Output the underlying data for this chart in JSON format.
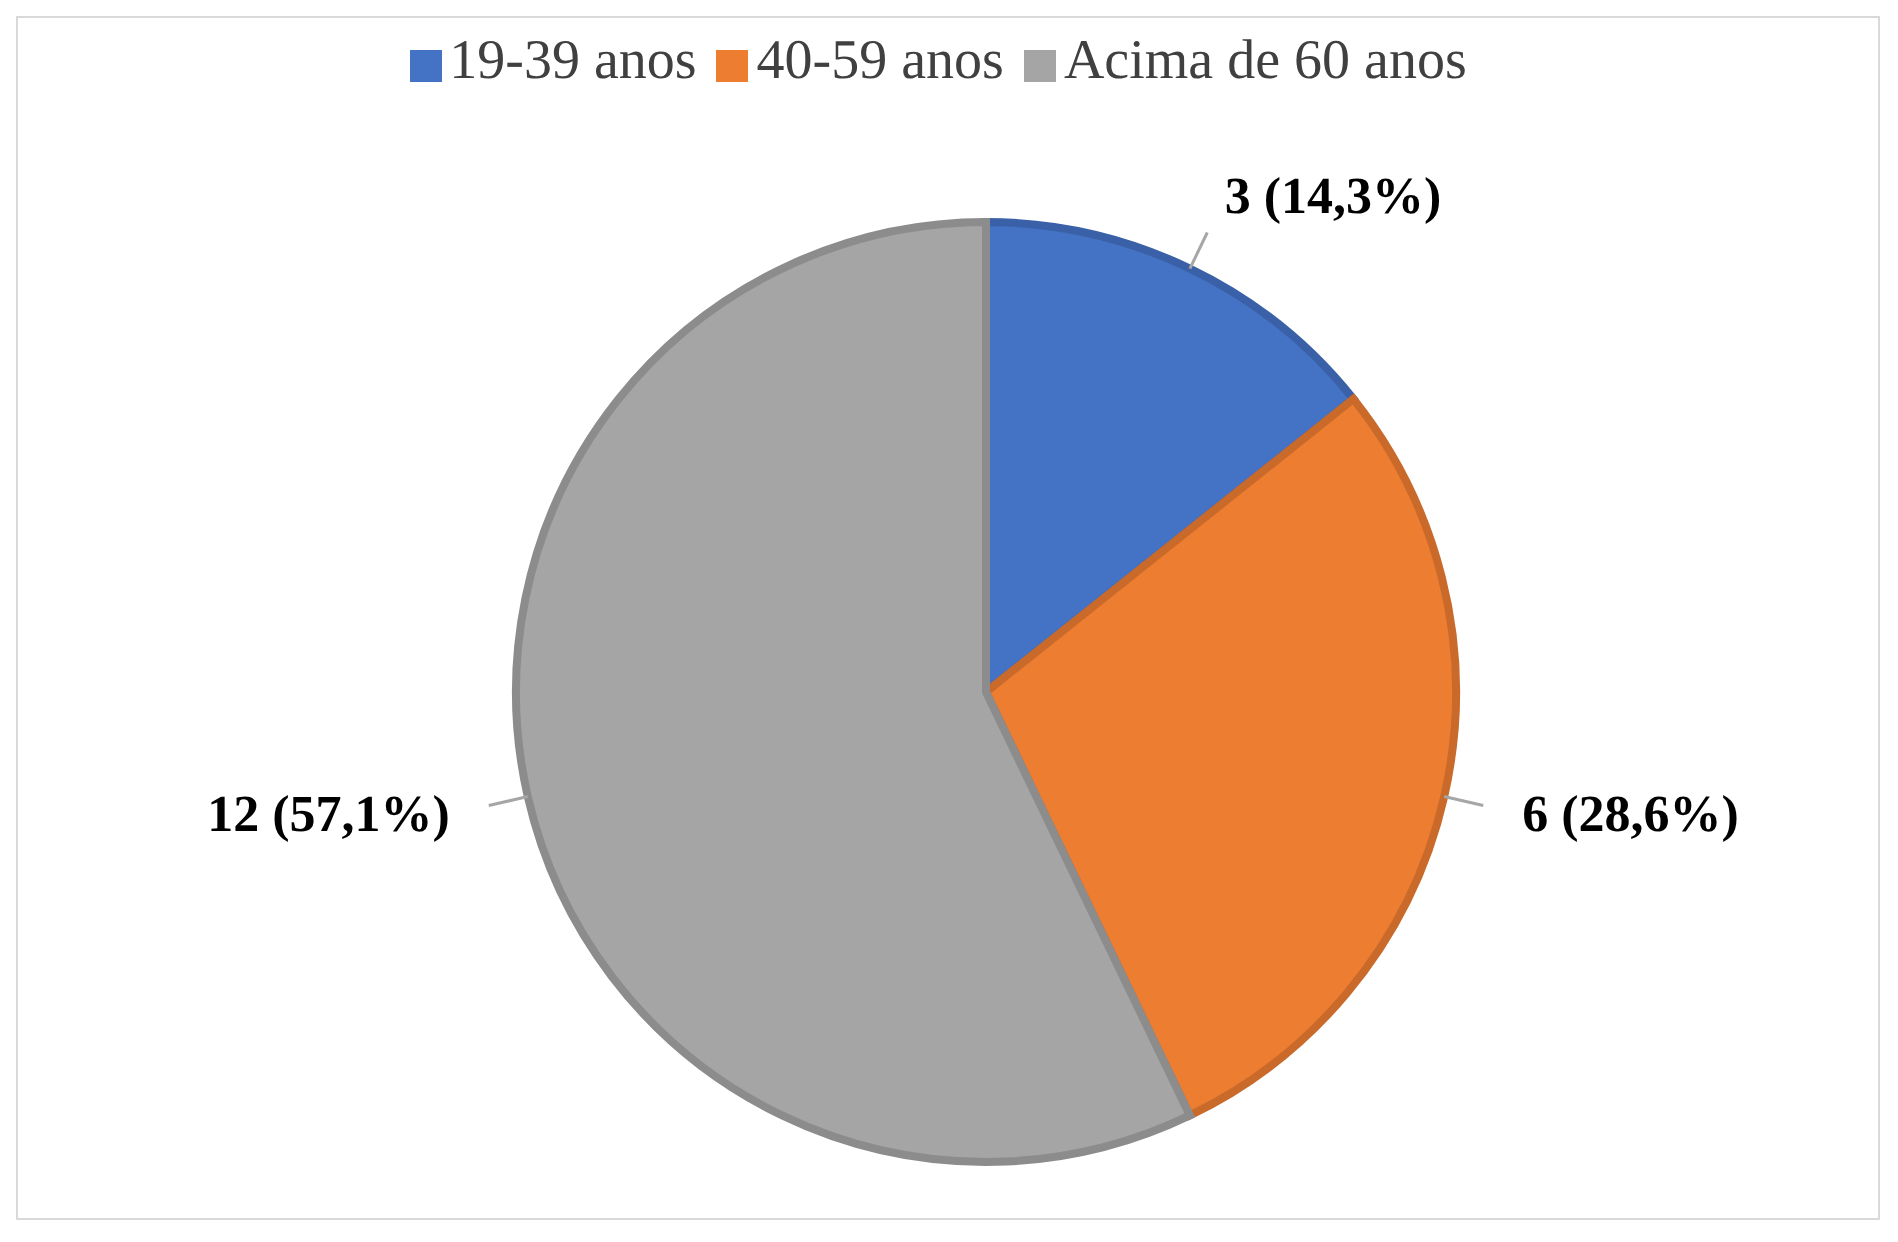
{
  "chart_data": {
    "type": "pie",
    "categories": [
      "19-39 anos",
      "40-59 anos",
      "Acima de 60 anos"
    ],
    "values": [
      3,
      6,
      12
    ],
    "value_labels": [
      "3 (14,3%)",
      "6 (28,6%)",
      "12 (57,1%)"
    ],
    "colors": [
      "#4472c4",
      "#ed7d31",
      "#a5a5a5"
    ],
    "legend": "top"
  }
}
